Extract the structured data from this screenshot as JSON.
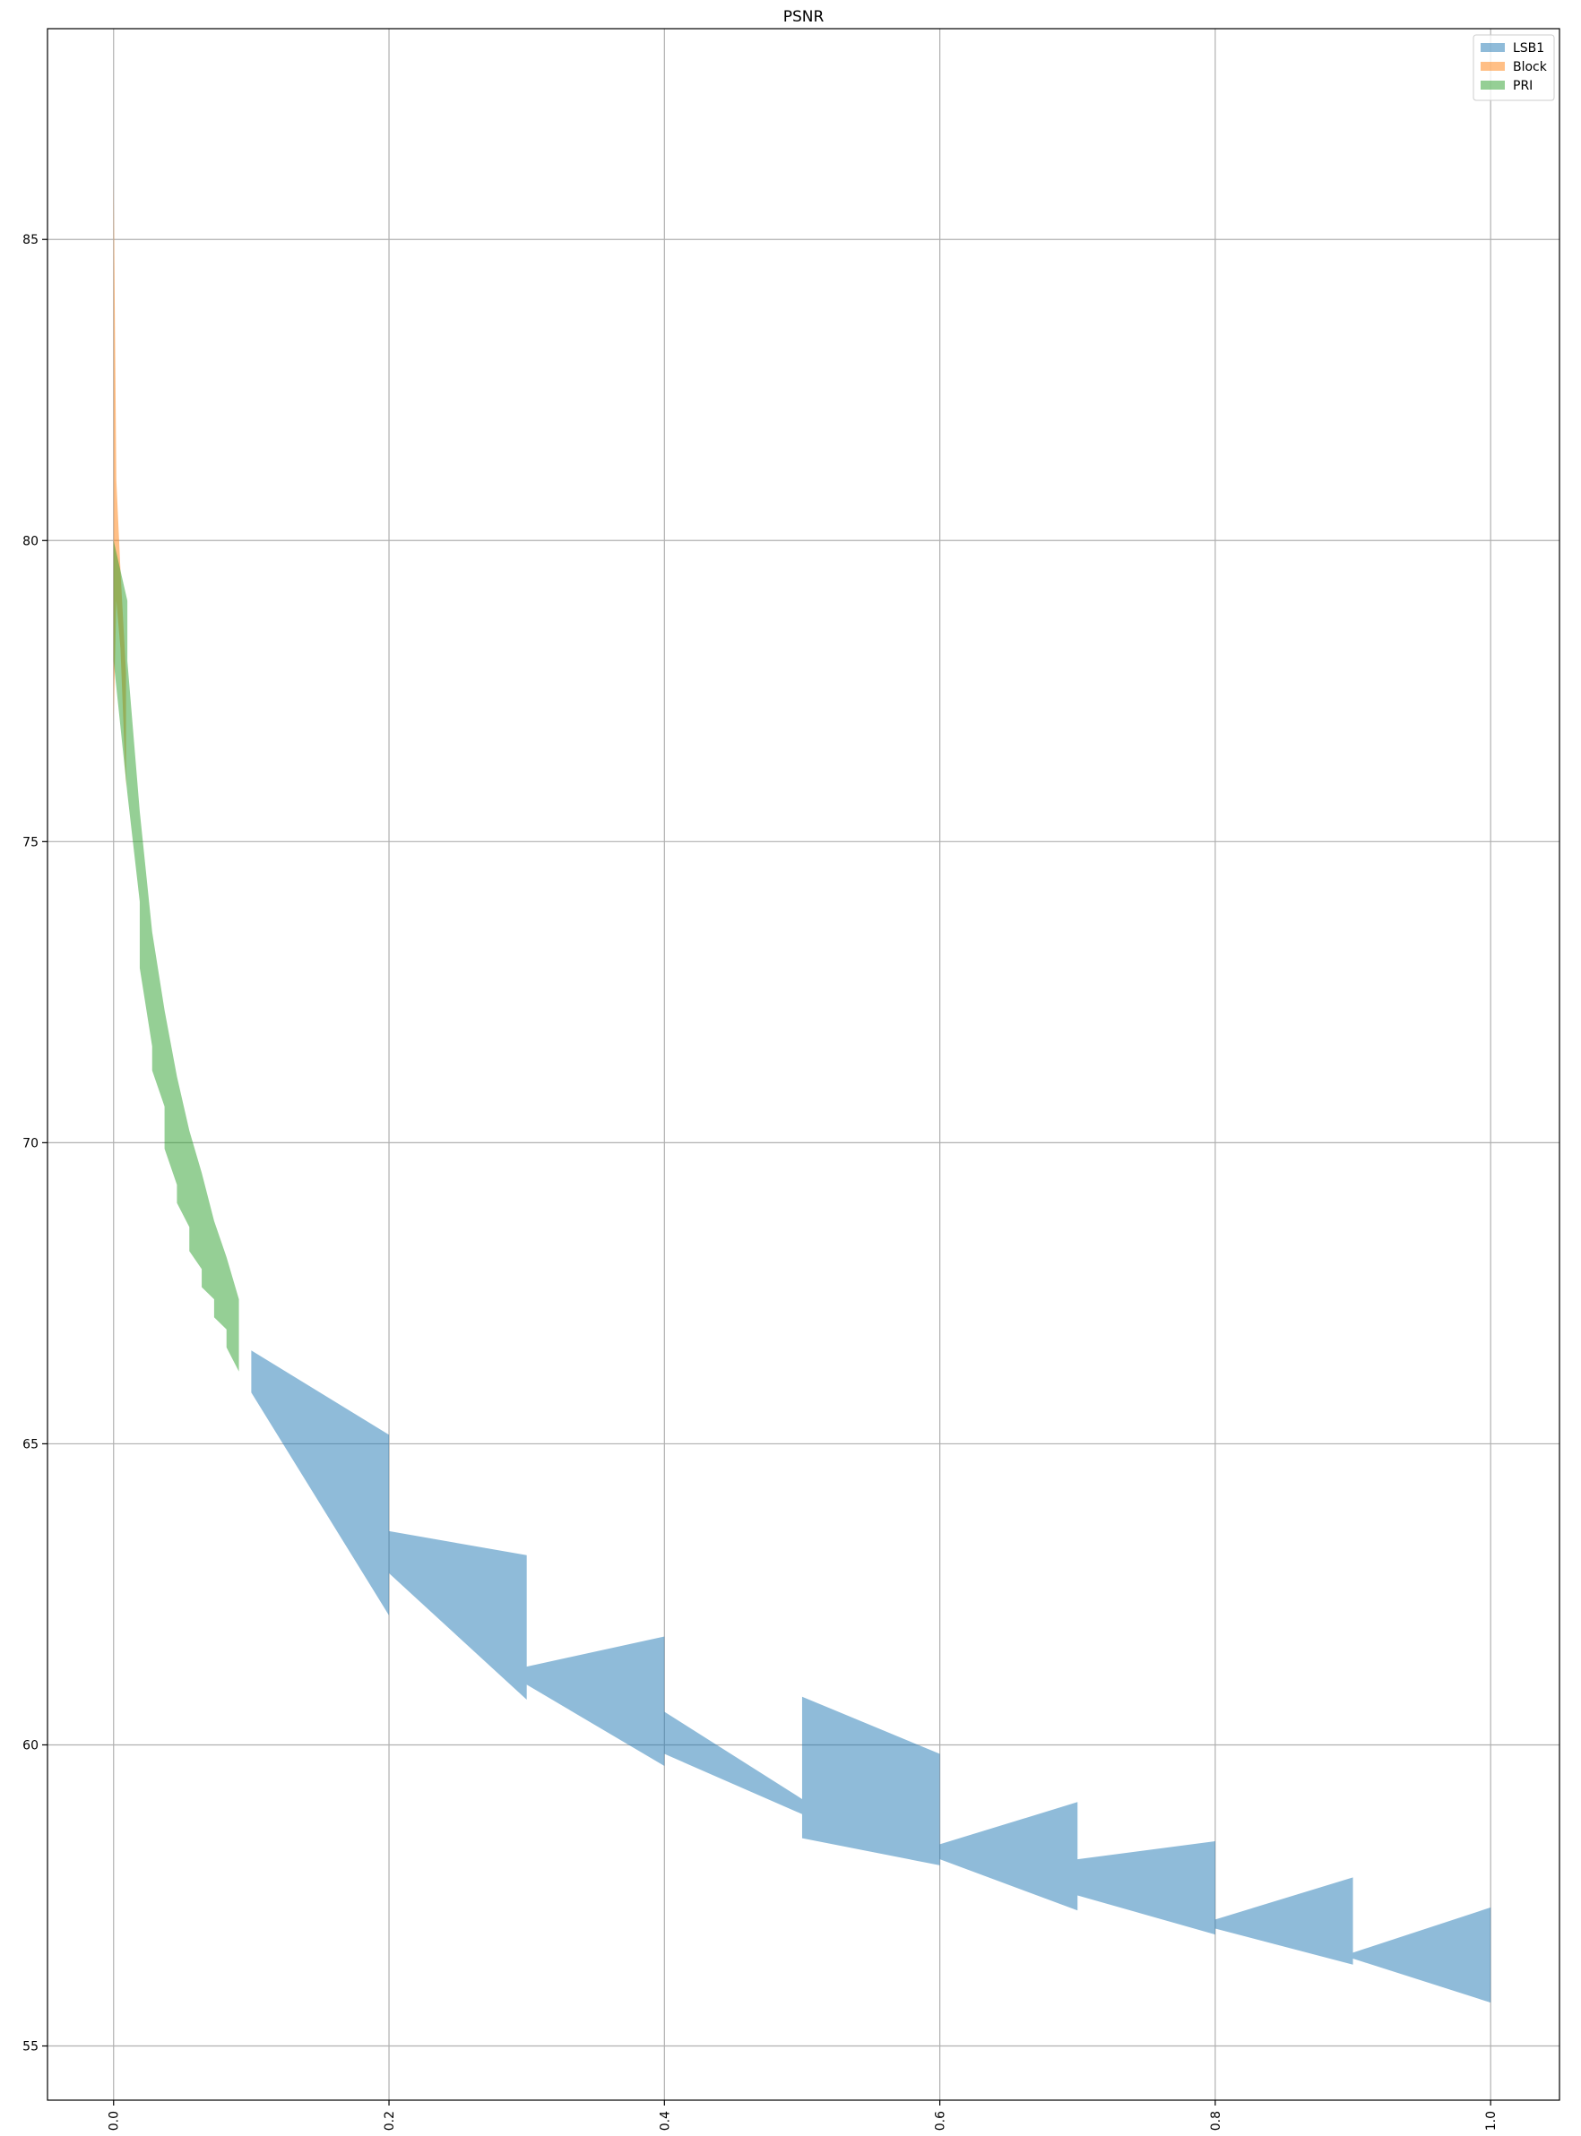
{
  "chart_data": {
    "type": "area",
    "title": "PSNR",
    "xlabel": "",
    "ylabel": "",
    "xlim": [
      -0.048,
      1.05
    ],
    "ylim": [
      54.1,
      88.5
    ],
    "x_ticks": [
      0.0,
      0.2,
      0.4,
      0.6,
      0.8,
      1.0
    ],
    "x_tick_labels": [
      "0.0",
      "0.2",
      "0.4",
      "0.6",
      "0.8",
      "1.0"
    ],
    "y_ticks": [
      55,
      60,
      65,
      70,
      75,
      80,
      85
    ],
    "y_tick_labels": [
      "55",
      "60",
      "65",
      "70",
      "75",
      "80",
      "85"
    ],
    "x_tick_rotation": 90,
    "grid": true,
    "legend": "top-right",
    "series": [
      {
        "name": "LSB1",
        "color": "#1f77b4",
        "alpha": 0.5,
        "lower": [
          [
            0.1,
            65.85
          ],
          [
            0.2,
            62.15
          ],
          [
            0.2,
            62.85
          ],
          [
            0.3,
            60.75
          ],
          [
            0.3,
            61.0
          ],
          [
            0.4,
            59.65
          ],
          [
            0.4,
            59.85
          ],
          [
            0.5,
            58.85
          ],
          [
            0.5,
            58.45
          ],
          [
            0.6,
            58.0
          ],
          [
            0.6,
            58.1
          ],
          [
            0.7,
            57.25
          ],
          [
            0.7,
            57.5
          ],
          [
            0.8,
            56.85
          ],
          [
            0.8,
            56.95
          ],
          [
            0.9,
            56.35
          ],
          [
            0.9,
            56.45
          ],
          [
            1.0,
            55.72
          ]
        ],
        "upper": [
          [
            0.1,
            66.55
          ],
          [
            0.2,
            65.15
          ],
          [
            0.2,
            63.55
          ],
          [
            0.3,
            63.15
          ],
          [
            0.3,
            61.3
          ],
          [
            0.4,
            61.8
          ],
          [
            0.4,
            60.55
          ],
          [
            0.5,
            59.1
          ],
          [
            0.5,
            60.8
          ],
          [
            0.6,
            59.85
          ],
          [
            0.6,
            58.35
          ],
          [
            0.7,
            59.05
          ],
          [
            0.7,
            58.1
          ],
          [
            0.8,
            58.4
          ],
          [
            0.8,
            57.1
          ],
          [
            0.9,
            57.8
          ],
          [
            0.9,
            56.55
          ],
          [
            1.0,
            57.3
          ]
        ]
      },
      {
        "name": "Block",
        "color": "#ff7f0e",
        "alpha": 0.5,
        "lower": [
          [
            0.0,
            77.0
          ],
          [
            0.002,
            79.0
          ],
          [
            0.005,
            78.2
          ],
          [
            0.009,
            75.9
          ]
        ],
        "upper": [
          [
            0.0,
            86.0
          ],
          [
            0.002,
            81.0
          ],
          [
            0.005,
            79.5
          ],
          [
            0.009,
            77.8
          ]
        ]
      },
      {
        "name": "PRI",
        "color": "#2ca02c",
        "alpha": 0.5,
        "lower": [
          [
            0.0,
            78.0
          ],
          [
            0.01,
            75.8
          ],
          [
            0.01,
            75.8
          ],
          [
            0.019,
            74.0
          ],
          [
            0.019,
            72.9
          ],
          [
            0.028,
            71.6
          ],
          [
            0.028,
            71.2
          ],
          [
            0.037,
            70.6
          ],
          [
            0.037,
            69.9
          ],
          [
            0.046,
            69.3
          ],
          [
            0.046,
            69.0
          ],
          [
            0.055,
            68.6
          ],
          [
            0.055,
            68.2
          ],
          [
            0.064,
            67.9
          ],
          [
            0.064,
            67.6
          ],
          [
            0.073,
            67.4
          ],
          [
            0.073,
            67.1
          ],
          [
            0.082,
            66.9
          ],
          [
            0.082,
            66.6
          ],
          [
            0.091,
            66.2
          ]
        ],
        "upper": [
          [
            0.0,
            80.0
          ],
          [
            0.01,
            79.0
          ],
          [
            0.01,
            78.0
          ],
          [
            0.019,
            75.5
          ],
          [
            0.019,
            75.5
          ],
          [
            0.028,
            73.5
          ],
          [
            0.028,
            73.5
          ],
          [
            0.037,
            72.2
          ],
          [
            0.037,
            72.2
          ],
          [
            0.046,
            71.1
          ],
          [
            0.046,
            71.1
          ],
          [
            0.055,
            70.2
          ],
          [
            0.055,
            70.2
          ],
          [
            0.064,
            69.5
          ],
          [
            0.064,
            69.5
          ],
          [
            0.073,
            68.7
          ],
          [
            0.073,
            68.7
          ],
          [
            0.082,
            68.1
          ],
          [
            0.082,
            68.1
          ],
          [
            0.091,
            67.4
          ]
        ]
      }
    ]
  }
}
